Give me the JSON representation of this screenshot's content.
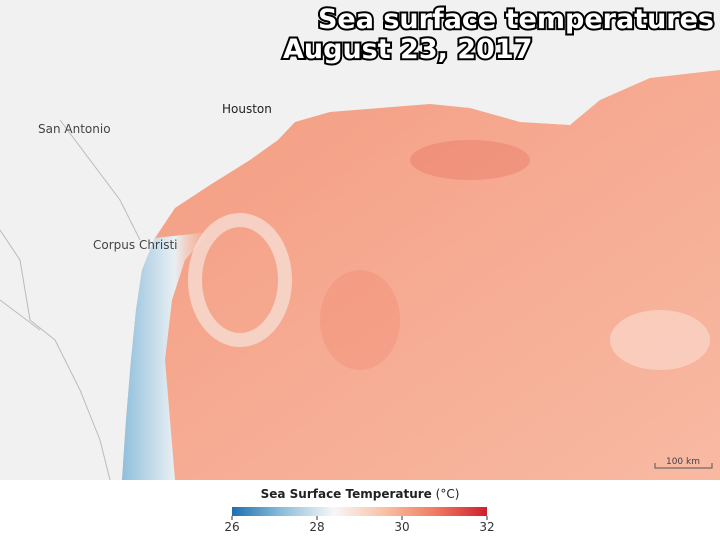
{
  "title": {
    "lines": [
      "Sea surface temperatures",
      "August 23, 2017"
    ]
  },
  "places": [
    {
      "label": "San Antonio"
    },
    {
      "label": "Houston"
    },
    {
      "label": "Corpus Christi"
    }
  ],
  "scale_bar": {
    "label": "100 km"
  },
  "colorbar": {
    "title": "Sea Surface Temperature",
    "unit": "(°C)",
    "range": [
      26,
      32
    ],
    "ticks": [
      26,
      28,
      30,
      32
    ],
    "colors": [
      "#1f6fb0",
      "#8fbfdc",
      "#f7f7f7",
      "#f9c0a6",
      "#ef7a60",
      "#cf1f2e"
    ]
  }
}
